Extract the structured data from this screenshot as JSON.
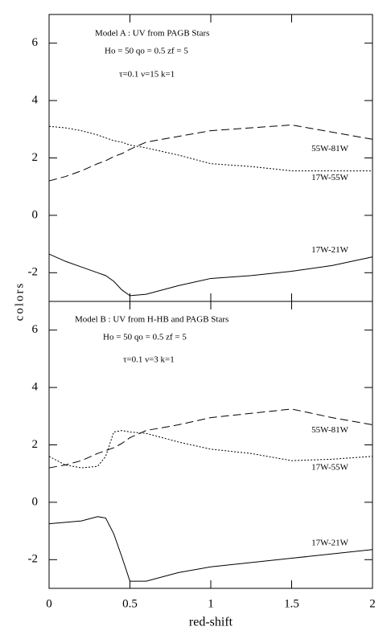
{
  "chart_data": [
    {
      "type": "line",
      "annotations": [
        "Model A : UV from  PAGB Stars",
        "Ho = 50  qo = 0.5  zf = 5",
        "τ=0.1  ν=15  k=1"
      ],
      "x": [
        0,
        0.1,
        0.2,
        0.3,
        0.35,
        0.4,
        0.45,
        0.5,
        0.6,
        0.8,
        1.0,
        1.25,
        1.5,
        1.75,
        2.0
      ],
      "series": [
        {
          "name": "55W-81W",
          "color": "#000000",
          "values": [
            1.2,
            1.35,
            1.55,
            1.8,
            1.9,
            2.05,
            2.15,
            2.3,
            2.55,
            2.75,
            2.95,
            3.05,
            3.15,
            2.9,
            2.65
          ]
        },
        {
          "name": "17W-55W",
          "color": "#000000",
          "values": [
            3.1,
            3.05,
            2.95,
            2.8,
            2.7,
            2.6,
            2.55,
            2.45,
            2.35,
            2.1,
            1.8,
            1.7,
            1.55,
            1.55,
            1.55
          ]
        },
        {
          "name": "17W-21W",
          "color": "#000000",
          "values": [
            -1.35,
            -1.6,
            -1.8,
            -2.0,
            -2.1,
            -2.3,
            -2.6,
            -2.8,
            -2.75,
            -2.45,
            -2.2,
            -2.1,
            -1.95,
            -1.75,
            -1.45
          ]
        }
      ],
      "xlim": [
        0,
        2
      ],
      "xticks": [
        0,
        0.5,
        1,
        1.5,
        2
      ],
      "ylim": [
        -3,
        7
      ],
      "yticks": [
        -2,
        0,
        2,
        4,
        6
      ]
    },
    {
      "type": "line",
      "annotations": [
        "Model B : UV from H-HB and PAGB Stars",
        "Ho = 50  qo = 0.5  zf = 5",
        "τ=0.1  ν=3  k=1"
      ],
      "xlabel": "red-shift",
      "ylabel": "colors",
      "x": [
        0,
        0.1,
        0.2,
        0.3,
        0.35,
        0.4,
        0.45,
        0.5,
        0.6,
        0.8,
        1.0,
        1.25,
        1.5,
        1.75,
        2.0
      ],
      "series": [
        {
          "name": "55W-81W",
          "color": "#000000",
          "values": [
            1.2,
            1.3,
            1.45,
            1.7,
            1.8,
            1.9,
            2.05,
            2.25,
            2.5,
            2.7,
            2.95,
            3.1,
            3.25,
            2.95,
            2.7
          ]
        },
        {
          "name": "17W-55W",
          "color": "#000000",
          "values": [
            1.6,
            1.3,
            1.2,
            1.25,
            1.6,
            2.45,
            2.5,
            2.45,
            2.4,
            2.1,
            1.85,
            1.7,
            1.45,
            1.5,
            1.6
          ]
        },
        {
          "name": "17W-21W",
          "color": "#000000",
          "values": [
            -0.75,
            -0.7,
            -0.65,
            -0.5,
            -0.55,
            -1.1,
            -1.9,
            -2.75,
            -2.75,
            -2.45,
            -2.25,
            -2.1,
            -1.95,
            -1.8,
            -1.65
          ]
        }
      ],
      "xlim": [
        0,
        2
      ],
      "xticks": [
        0,
        0.5,
        1,
        1.5,
        2
      ],
      "ylim": [
        -3,
        7
      ],
      "yticks": [
        -2,
        0,
        2,
        4,
        6
      ]
    }
  ]
}
